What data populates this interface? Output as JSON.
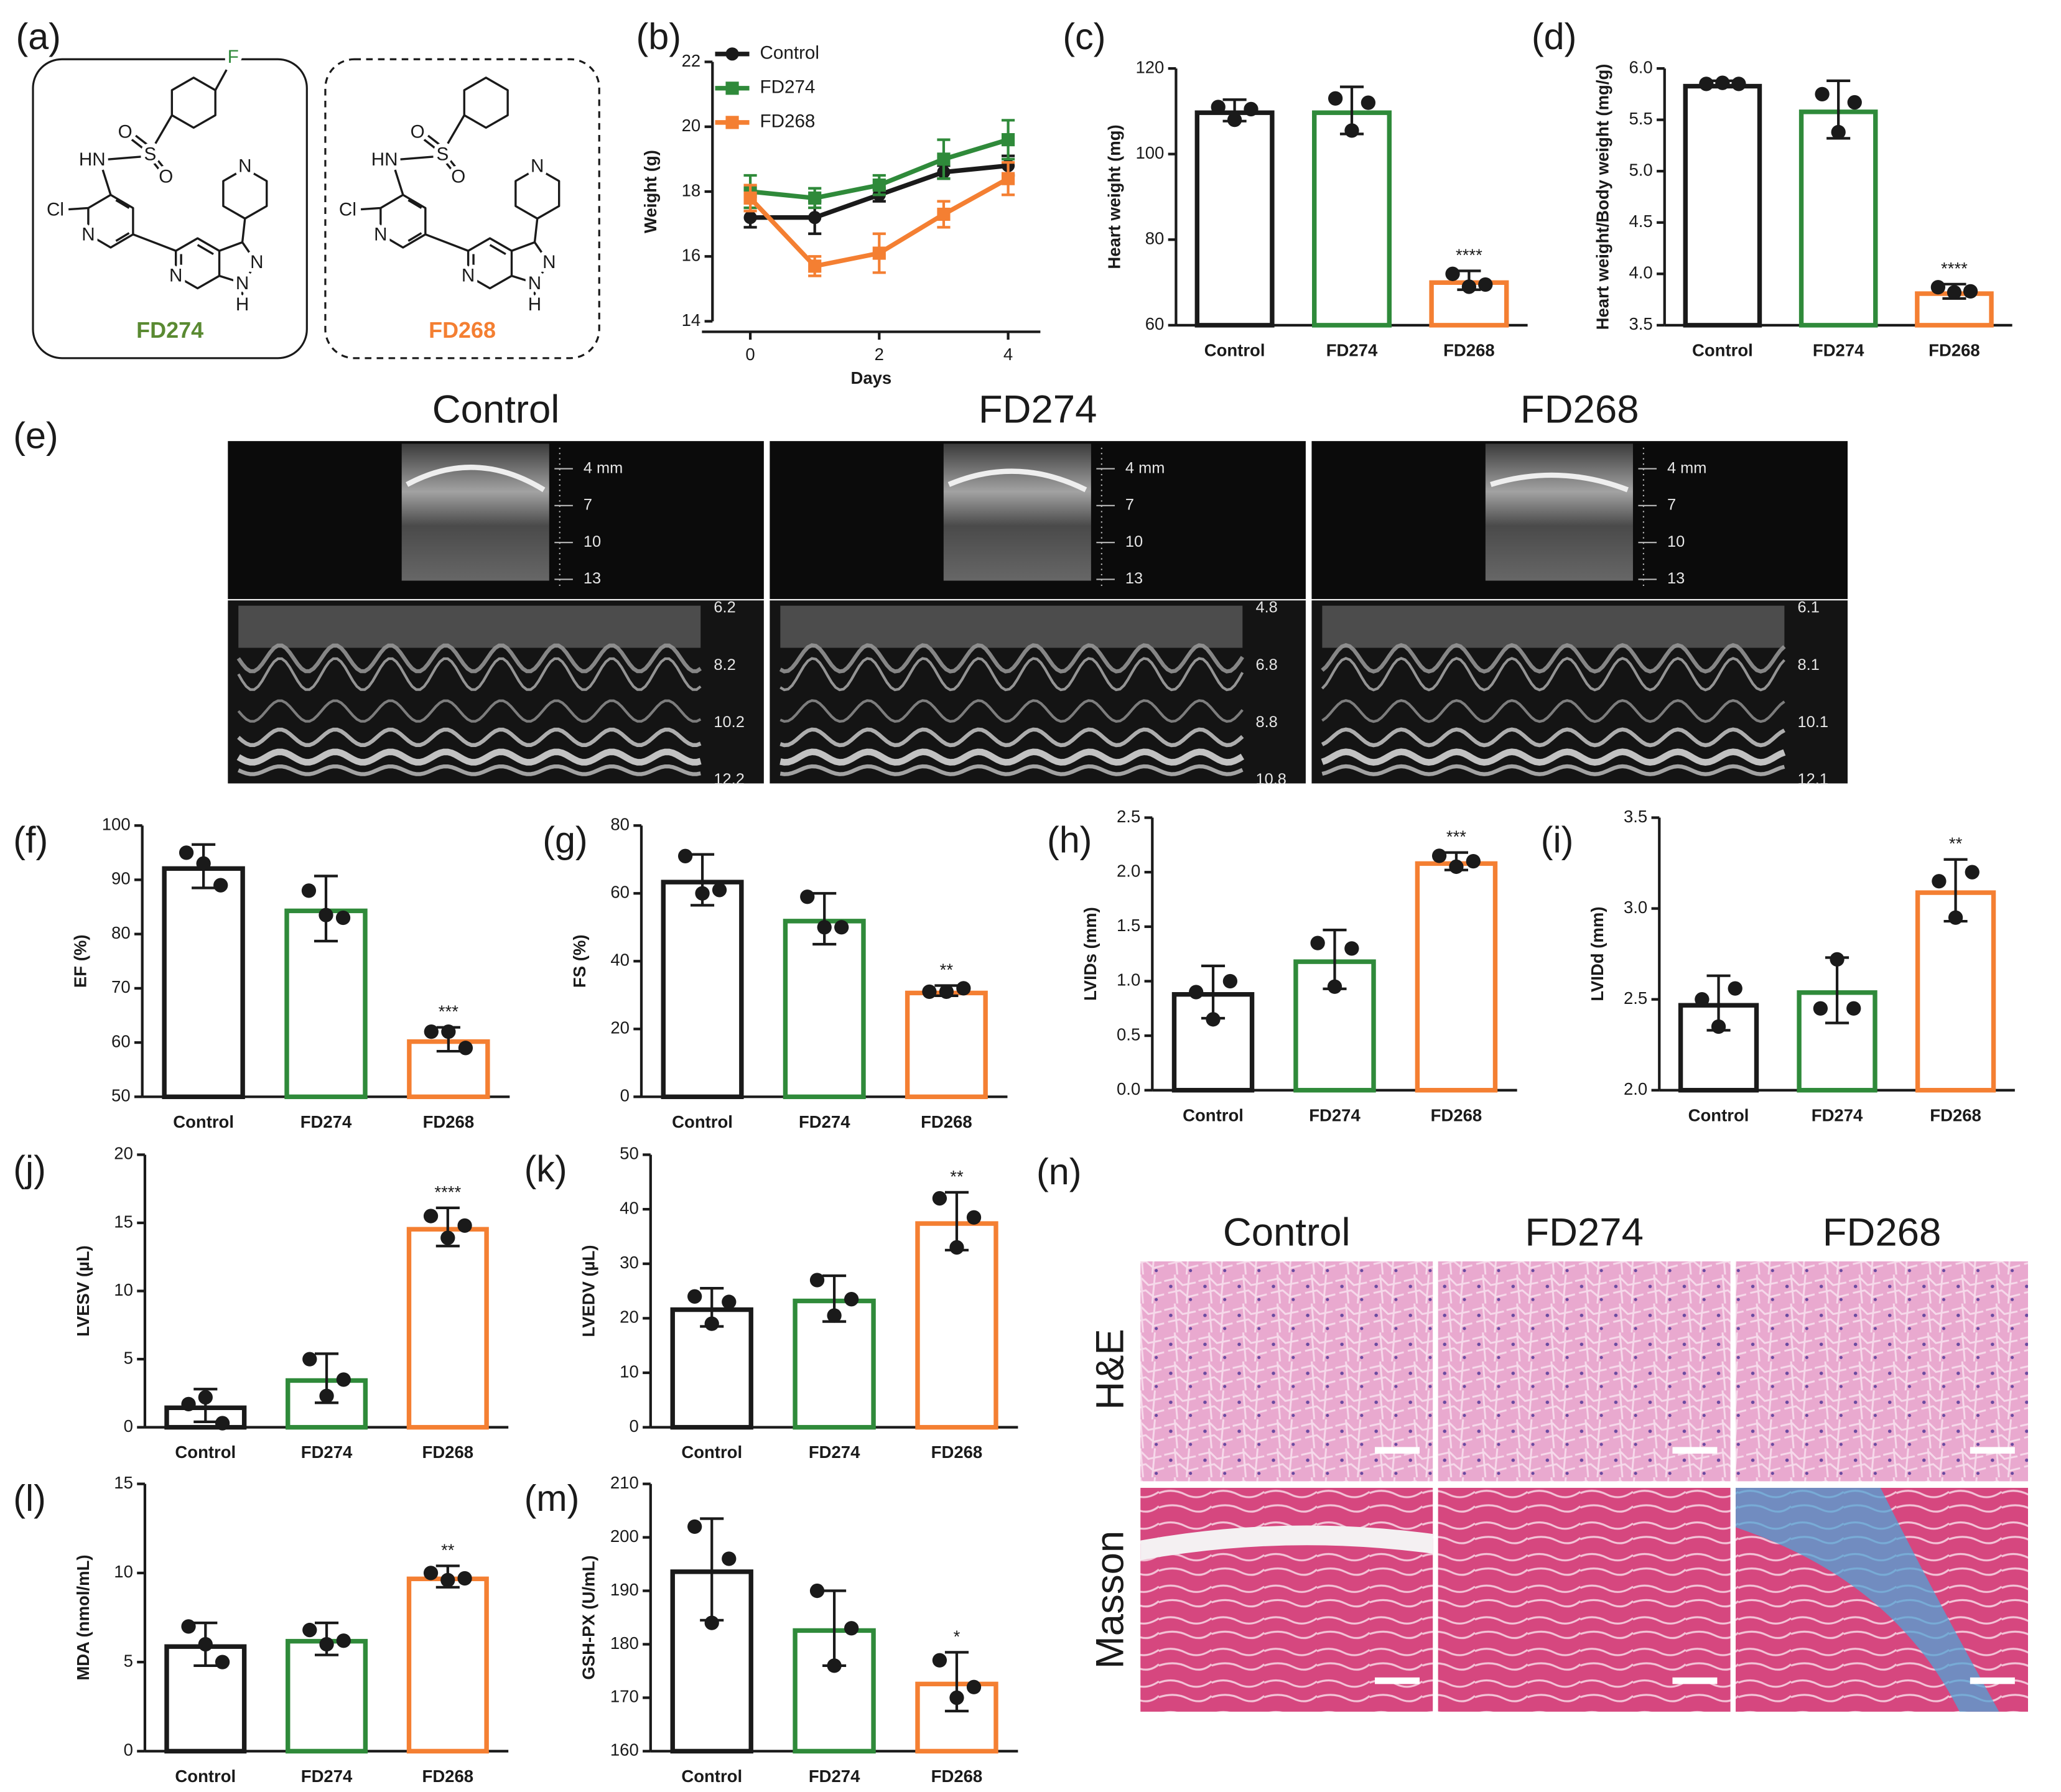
{
  "structures": {
    "label": "(a)",
    "compounds": [
      {
        "name": "FD274",
        "atoms": [
          "F",
          "HN",
          "S",
          "O",
          "O",
          "Cl",
          "N",
          "N",
          "N",
          "N",
          "N",
          "H"
        ]
      },
      {
        "name": "FD268",
        "atoms": [
          "HN",
          "S",
          "O",
          "O",
          "Cl",
          "N",
          "N",
          "N",
          "N",
          "N",
          "H"
        ]
      }
    ]
  },
  "echo": {
    "label": "(e)",
    "panels": [
      {
        "title": "Control",
        "depth": [
          "4 mm",
          "7",
          "10",
          "13"
        ],
        "mmode": [
          "6.2",
          "8.2",
          "10.2",
          "12.2"
        ]
      },
      {
        "title": "FD274",
        "depth": [
          "4 mm",
          "7",
          "10",
          "13"
        ],
        "mmode": [
          "4.8",
          "6.8",
          "8.8",
          "10.8"
        ]
      },
      {
        "title": "FD268",
        "depth": [
          "4 mm",
          "7",
          "10",
          "13"
        ],
        "mmode": [
          "6.1",
          "8.1",
          "10.1",
          "12.1"
        ]
      }
    ]
  },
  "histology": {
    "label": "(n)",
    "columns": [
      "Control",
      "FD274",
      "FD268"
    ],
    "rows": [
      "H&E",
      "Masson"
    ]
  },
  "chart_data": [
    {
      "type": "line",
      "label": "(b)",
      "xlabel": "Days",
      "ylabel": "Weight (g)",
      "x": [
        0,
        1,
        2,
        3,
        4
      ],
      "xlim": [
        -0.75,
        4.5
      ],
      "xticks": [
        0,
        2,
        4
      ],
      "ylim": [
        14,
        22
      ],
      "yticks": [
        14,
        16,
        18,
        20,
        22
      ],
      "legend": "upper left",
      "series": [
        {
          "name": "Control",
          "color": "#1a1a1a",
          "marker": "circle",
          "values": [
            17.2,
            17.2,
            17.9,
            18.6,
            18.8
          ],
          "errors": [
            0.3,
            0.5,
            0.2,
            0.2,
            0.3
          ]
        },
        {
          "name": "FD274",
          "color": "#2f8a3a",
          "marker": "square",
          "values": [
            18.0,
            17.8,
            18.2,
            19.0,
            19.6
          ],
          "errors": [
            0.5,
            0.3,
            0.3,
            0.6,
            0.6
          ]
        },
        {
          "name": "FD268",
          "color": "#f47f32",
          "marker": "square",
          "values": [
            17.8,
            15.7,
            16.1,
            17.3,
            18.4
          ],
          "errors": [
            0.4,
            0.3,
            0.6,
            0.4,
            0.5
          ]
        }
      ]
    },
    {
      "type": "bar",
      "label": "(c)",
      "ylabel": "Heart weight (mg)",
      "categories": [
        "Control",
        "FD274",
        "FD268"
      ],
      "colors": [
        "#1a1a1a",
        "#2f8a3a",
        "#f47f32"
      ],
      "values": [
        110.2,
        110.2,
        70.5
      ],
      "errors": [
        2.5,
        5.5,
        2.2
      ],
      "points": [
        [
          111,
          108,
          110.5
        ],
        [
          113,
          105.5,
          112
        ],
        [
          72,
          69,
          69.5
        ]
      ],
      "annotations": [
        null,
        null,
        "****"
      ],
      "ylim": [
        60,
        120
      ],
      "yticks": [
        60,
        80,
        100,
        120
      ]
    },
    {
      "type": "bar",
      "label": "(d)",
      "ylabel": "Heart weight/Body weight (mg/g)",
      "categories": [
        "Control",
        "FD274",
        "FD268"
      ],
      "colors": [
        "#1a1a1a",
        "#2f8a3a",
        "#f47f32"
      ],
      "values": [
        5.85,
        5.6,
        3.83
      ],
      "errors": [
        0.03,
        0.28,
        0.07
      ],
      "points": [
        [
          5.85,
          5.86,
          5.85
        ],
        [
          5.75,
          5.38,
          5.67
        ],
        [
          3.87,
          3.82,
          3.83
        ]
      ],
      "annotations": [
        null,
        null,
        "****"
      ],
      "ylim": [
        3.5,
        6
      ],
      "yticks": [
        3.5,
        {
          "value": 4,
          "label": "4.0"
        },
        4.5,
        {
          "value": 5,
          "label": "5.0"
        },
        5.5,
        {
          "value": 6,
          "label": "6.0"
        }
      ]
    },
    {
      "type": "bar",
      "label": "(f)",
      "ylabel": "EF (%)",
      "categories": [
        "Control",
        "FD274",
        "FD268"
      ],
      "colors": [
        "#1a1a1a",
        "#2f8a3a",
        "#f47f32"
      ],
      "values": [
        92.5,
        84.7,
        60.6
      ],
      "errors": [
        4,
        6,
        2.2
      ],
      "points": [
        [
          95,
          93,
          89
        ],
        [
          88,
          83.5,
          83
        ],
        [
          62,
          62,
          59
        ]
      ],
      "annotations": [
        null,
        null,
        "***"
      ],
      "ylim": [
        50,
        100
      ],
      "yticks": [
        50,
        60,
        70,
        80,
        90,
        100
      ]
    },
    {
      "type": "bar",
      "label": "(g)",
      "ylabel": "FS (%)",
      "categories": [
        "Control",
        "FD274",
        "FD268"
      ],
      "colors": [
        "#1a1a1a",
        "#2f8a3a",
        "#f47f32"
      ],
      "values": [
        64,
        52.5,
        31.3
      ],
      "errors": [
        7.5,
        7.5,
        1.5
      ],
      "points": [
        [
          71,
          60,
          61
        ],
        [
          59,
          50,
          50
        ],
        [
          31,
          31,
          32
        ]
      ],
      "annotations": [
        null,
        null,
        "**"
      ],
      "ylim": [
        0,
        80
      ],
      "yticks": [
        0,
        20,
        40,
        60,
        80
      ]
    },
    {
      "type": "bar",
      "label": "(h)",
      "ylabel": "LVIDs (mm)",
      "categories": [
        "Control",
        "FD274",
        "FD268"
      ],
      "colors": [
        "#1a1a1a",
        "#2f8a3a",
        "#f47f32"
      ],
      "values": [
        0.9,
        1.2,
        2.1
      ],
      "errors": [
        0.24,
        0.27,
        0.08
      ],
      "points": [
        [
          0.9,
          0.65,
          1.0
        ],
        [
          1.35,
          0.95,
          1.3
        ],
        [
          2.15,
          2.05,
          2.1
        ]
      ],
      "annotations": [
        null,
        null,
        "***"
      ],
      "ylim": [
        0,
        2.5
      ],
      "yticks": [
        {
          "value": 0,
          "label": "0.0"
        },
        0.5,
        {
          "value": 1,
          "label": "1.0"
        },
        1.5,
        {
          "value": 2,
          "label": "2.0"
        },
        2.5
      ]
    },
    {
      "type": "bar",
      "label": "(i)",
      "ylabel": "LVIDd (mm)",
      "categories": [
        "Control",
        "FD274",
        "FD268"
      ],
      "colors": [
        "#1a1a1a",
        "#2f8a3a",
        "#f47f32"
      ],
      "values": [
        2.48,
        2.55,
        3.1
      ],
      "errors": [
        0.15,
        0.18,
        0.17
      ],
      "points": [
        [
          2.5,
          2.35,
          2.56
        ],
        [
          2.45,
          2.72,
          2.45
        ],
        [
          3.15,
          2.95,
          3.2
        ]
      ],
      "annotations": [
        null,
        null,
        "**"
      ],
      "ylim": [
        2,
        3.5
      ],
      "yticks": [
        {
          "value": 2,
          "label": "2.0"
        },
        2.5,
        {
          "value": 3,
          "label": "3.0"
        },
        3.5
      ]
    },
    {
      "type": "bar",
      "label": "(j)",
      "ylabel": "LVESV (µL)",
      "categories": [
        "Control",
        "FD274",
        "FD268"
      ],
      "colors": [
        "#1a1a1a",
        "#2f8a3a",
        "#f47f32"
      ],
      "values": [
        1.6,
        3.6,
        14.7
      ],
      "errors": [
        1.2,
        1.8,
        1.4
      ],
      "points": [
        [
          1.7,
          2.2,
          0.3
        ],
        [
          5,
          2.3,
          3.5
        ],
        [
          15.5,
          13.9,
          14.8
        ]
      ],
      "annotations": [
        null,
        null,
        "****"
      ],
      "ylim": [
        0,
        20
      ],
      "yticks": [
        0,
        5,
        10,
        15,
        20
      ]
    },
    {
      "type": "bar",
      "label": "(k)",
      "ylabel": "LVEDV (µL)",
      "categories": [
        "Control",
        "FD274",
        "FD268"
      ],
      "colors": [
        "#1a1a1a",
        "#2f8a3a",
        "#f47f32"
      ],
      "values": [
        22,
        23.6,
        37.8
      ],
      "errors": [
        3.5,
        4.2,
        5.3
      ],
      "points": [
        [
          24,
          19,
          23
        ],
        [
          27,
          20.5,
          23.5
        ],
        [
          42,
          33,
          38.5
        ]
      ],
      "annotations": [
        null,
        null,
        "**"
      ],
      "ylim": [
        0,
        50
      ],
      "yticks": [
        0,
        10,
        20,
        30,
        40,
        50
      ]
    },
    {
      "type": "bar",
      "label": "(l)",
      "ylabel": "MDA (nmol/mL)",
      "categories": [
        "Control",
        "FD274",
        "FD268"
      ],
      "colors": [
        "#1a1a1a",
        "#2f8a3a",
        "#f47f32"
      ],
      "values": [
        6,
        6.3,
        9.8
      ],
      "errors": [
        1.2,
        0.9,
        0.6
      ],
      "points": [
        [
          7,
          6,
          5
        ],
        [
          6.8,
          6,
          6.2
        ],
        [
          10,
          9.6,
          9.7
        ]
      ],
      "annotations": [
        null,
        null,
        "**"
      ],
      "ylim": [
        0,
        15
      ],
      "yticks": [
        0,
        5,
        10,
        15
      ]
    },
    {
      "type": "bar",
      "label": "(m)",
      "ylabel": "GSH-PX (U/mL)",
      "categories": [
        "Control",
        "FD274",
        "FD268"
      ],
      "colors": [
        "#1a1a1a",
        "#2f8a3a",
        "#f47f32"
      ],
      "values": [
        194,
        183,
        173
      ],
      "errors": [
        9.5,
        7,
        5.5
      ],
      "points": [
        [
          202,
          184,
          196
        ],
        [
          190,
          176,
          183
        ],
        [
          177,
          170,
          172
        ]
      ],
      "annotations": [
        null,
        null,
        "*"
      ],
      "ylim": [
        160,
        210
      ],
      "yticks": [
        160,
        170,
        180,
        190,
        200,
        210
      ]
    }
  ]
}
